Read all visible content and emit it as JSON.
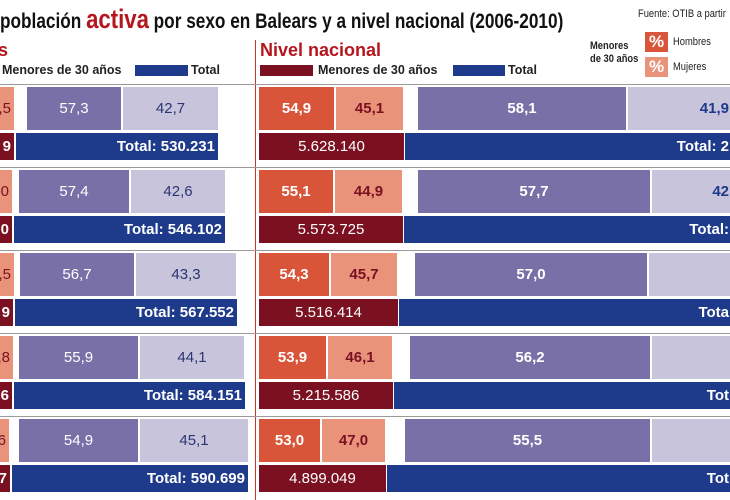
{
  "chart_data": {
    "type": "bar",
    "title_parts": [
      "población ",
      "activa",
      " por sexo en Balears y a nivel nacional (2006-2010)"
    ],
    "source": "Fuente: OTIB a partir",
    "colors": {
      "hombres": "#d9553a",
      "mujeres": "#e8937a",
      "menores": "#7a1020",
      "total": "#1e3a8a",
      "hombres_total": "#7a70a8",
      "mujeres_total": "#c8c4dc",
      "accent": "#b5161e"
    },
    "legend_box": {
      "label": "Menores de 30 años",
      "symbol": "%",
      "hombres": "Hombres",
      "mujeres": "Mujeres"
    },
    "panels": [
      {
        "title": "s",
        "legend": {
          "menores": "Menores de 30 años",
          "total": "Total"
        },
        "rows": [
          {
            "menores_h": ",5",
            "menores_n": "9",
            "hombres_pct": "57,3",
            "mujeres_pct": "42,7",
            "total": "Total: 530.231"
          },
          {
            "menores_h": ",0",
            "menores_n": "0",
            "hombres_pct": "57,4",
            "mujeres_pct": "42,6",
            "total": "Total: 546.102"
          },
          {
            "menores_h": ",5",
            "menores_n": "9",
            "hombres_pct": "56,7",
            "mujeres_pct": "43,3",
            "total": "Total: 567.552"
          },
          {
            "menores_h": ",8",
            "menores_n": "6",
            "hombres_pct": "55,9",
            "mujeres_pct": "44,1",
            "total": "Total: 584.151"
          },
          {
            "menores_h": "6",
            "menores_n": "7",
            "hombres_pct": "54,9",
            "mujeres_pct": "45,1",
            "total": "Total: 590.699"
          }
        ]
      },
      {
        "title": "Nivel nacional",
        "legend": {
          "menores": "Menores de 30 años",
          "total": "Total"
        },
        "rows": [
          {
            "menores_h": "54,9",
            "menores_m": "45,1",
            "menores_n": "5.628.140",
            "hombres_pct": "58,1",
            "mujeres_pct": "41,9",
            "total": "Total: 2"
          },
          {
            "menores_h": "55,1",
            "menores_m": "44,9",
            "menores_n": "5.573.725",
            "hombres_pct": "57,7",
            "mujeres_pct": "42",
            "total": "Total:"
          },
          {
            "menores_h": "54,3",
            "menores_m": "45,7",
            "menores_n": "5.516.414",
            "hombres_pct": "57,0",
            "mujeres_pct": "",
            "total": "Tota"
          },
          {
            "menores_h": "53,9",
            "menores_m": "46,1",
            "menores_n": "5.215.586",
            "hombres_pct": "56,2",
            "mujeres_pct": "",
            "total": "Tot"
          },
          {
            "menores_h": "53,0",
            "menores_m": "47,0",
            "menores_n": "4.899.049",
            "hombres_pct": "55,5",
            "mujeres_pct": "",
            "total": "Tot"
          }
        ]
      }
    ]
  }
}
